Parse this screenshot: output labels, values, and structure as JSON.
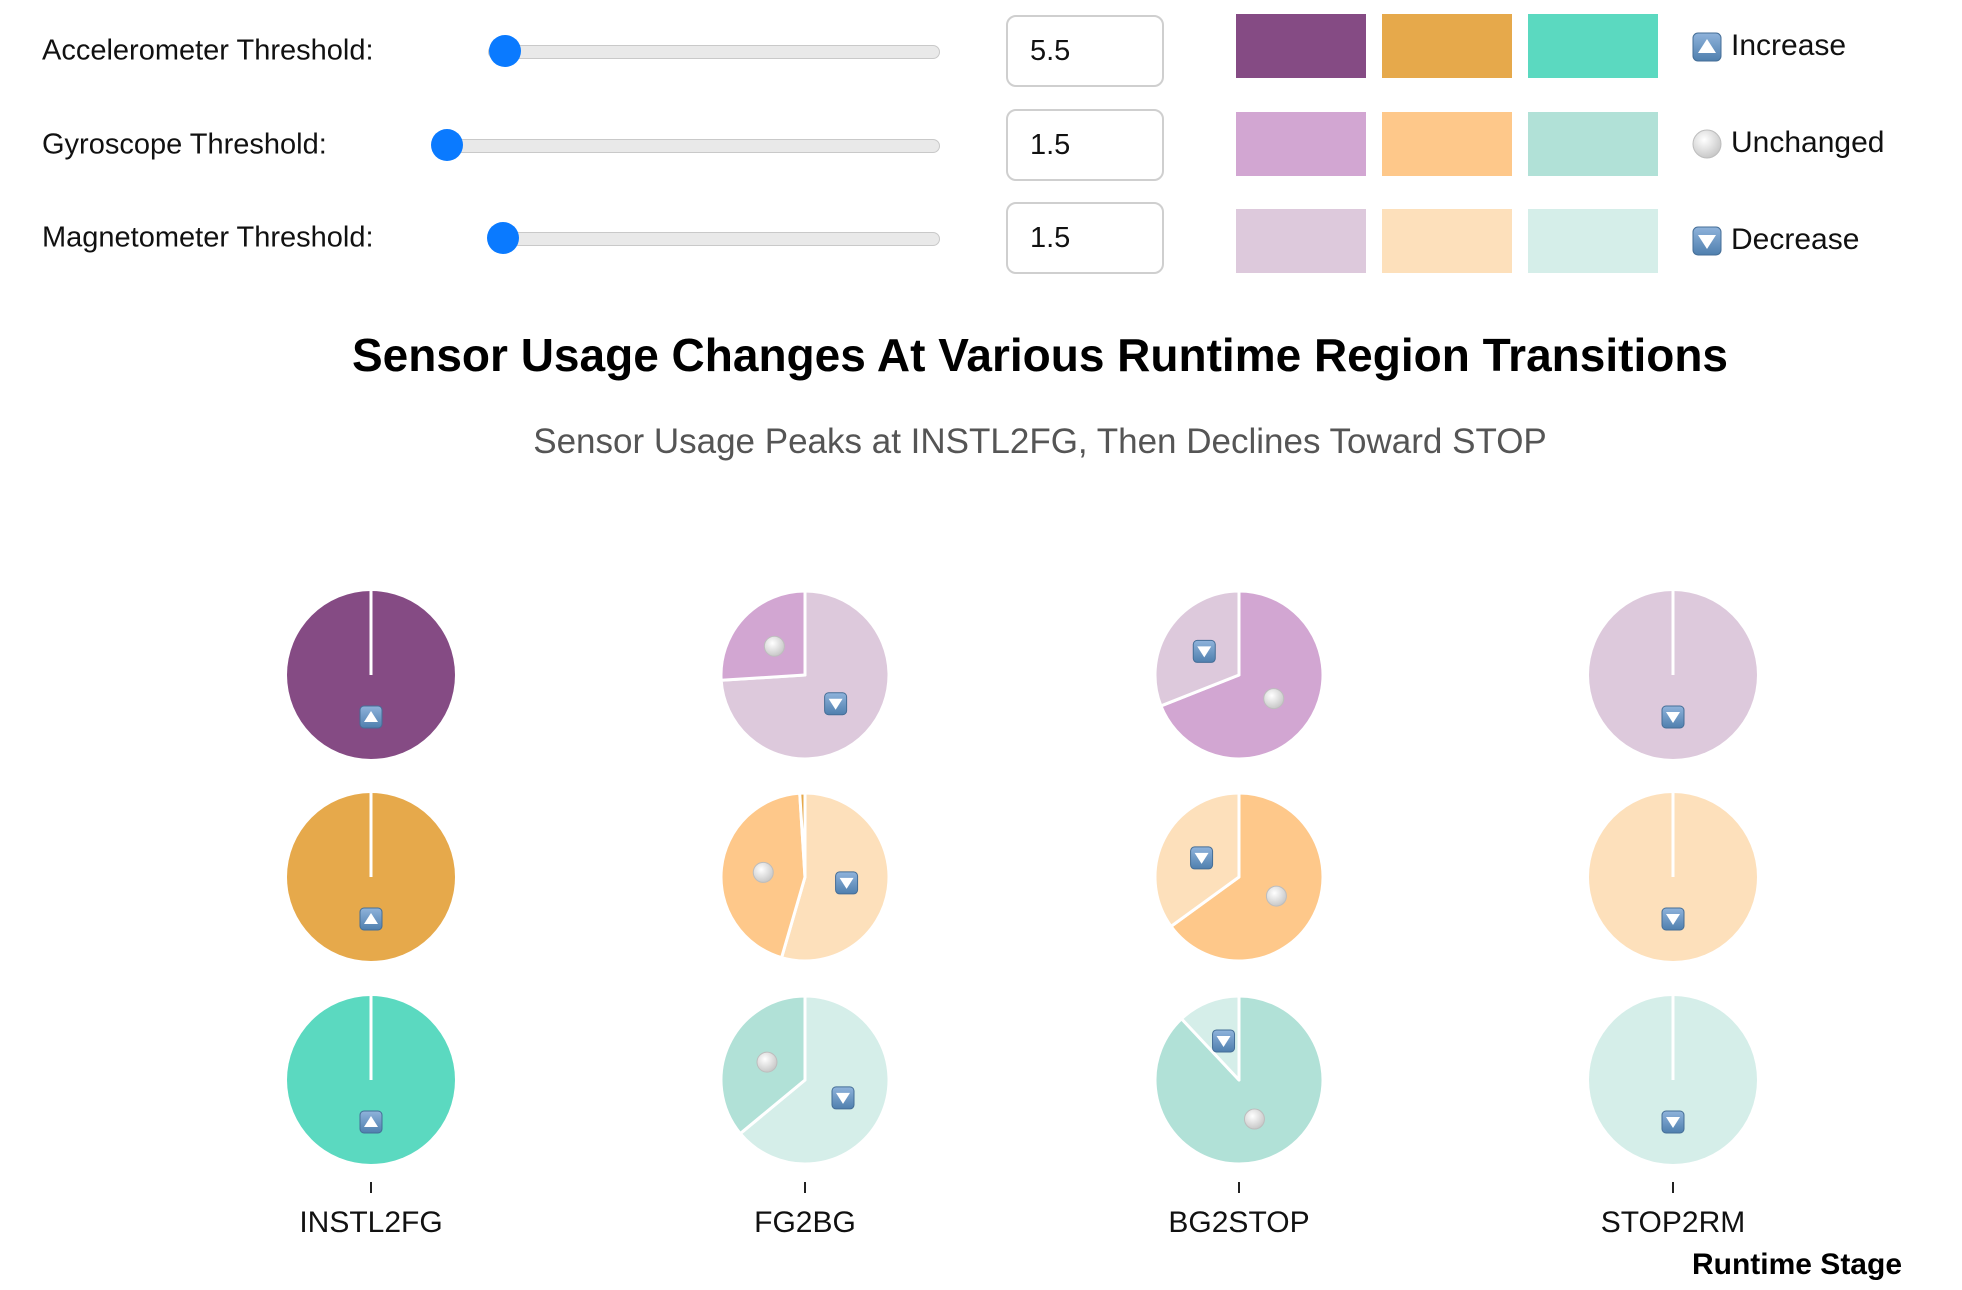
{
  "controls": [
    {
      "label": "Accelerometer Threshold:",
      "value": "5.5"
    },
    {
      "label": "Gyroscope Threshold:",
      "value": "1.5"
    },
    {
      "label": "Magnetometer Threshold:",
      "value": "1.5"
    }
  ],
  "legend": {
    "increase": {
      "label": "Increase",
      "icon": "up-arrow-icon",
      "colors": [
        "#854b84",
        "#e6a94b",
        "#5bd9c0"
      ]
    },
    "unchanged": {
      "label": "Unchanged",
      "icon": "circle-icon",
      "colors": [
        "#d2a6d2",
        "#fec88a",
        "#b1e1d7"
      ]
    },
    "decrease": {
      "label": "Decrease",
      "icon": "down-arrow-icon",
      "colors": [
        "#ddc9dc",
        "#fde0bb",
        "#d5eee9"
      ]
    }
  },
  "chart_data": {
    "type": "pie",
    "title": "Sensor Usage Changes At Various Runtime Region Transitions",
    "subtitle": "Sensor Usage Peaks at INSTL2FG, Then Declines Toward STOP",
    "xlabel": "Runtime Stage",
    "categories": [
      "INSTL2FG",
      "FG2BG",
      "BG2STOP",
      "STOP2RM"
    ],
    "sensors": [
      "Accelerometer",
      "Gyroscope",
      "Magnetometer"
    ],
    "pies": [
      [
        [
          {
            "status": "increase",
            "share": 1.0
          }
        ],
        [
          {
            "status": "increase",
            "share": 1.0
          }
        ],
        [
          {
            "status": "increase",
            "share": 1.0
          }
        ]
      ],
      [
        [
          {
            "status": "decrease",
            "share": 0.74
          },
          {
            "status": "unchanged",
            "share": 0.26
          }
        ],
        [
          {
            "status": "decrease",
            "share": 0.545
          },
          {
            "status": "unchanged",
            "share": 0.445
          },
          {
            "status": "increase",
            "share": 0.01
          }
        ],
        [
          {
            "status": "decrease",
            "share": 0.64
          },
          {
            "status": "unchanged",
            "share": 0.36
          }
        ]
      ],
      [
        [
          {
            "status": "unchanged",
            "share": 0.69
          },
          {
            "status": "decrease",
            "share": 0.31
          }
        ],
        [
          {
            "status": "unchanged",
            "share": 0.65
          },
          {
            "status": "decrease",
            "share": 0.35
          }
        ],
        [
          {
            "status": "unchanged",
            "share": 0.88
          },
          {
            "status": "decrease",
            "share": 0.12
          }
        ]
      ],
      [
        [
          {
            "status": "decrease",
            "share": 1.0
          }
        ],
        [
          {
            "status": "decrease",
            "share": 1.0
          }
        ],
        [
          {
            "status": "decrease",
            "share": 1.0
          }
        ]
      ]
    ]
  }
}
